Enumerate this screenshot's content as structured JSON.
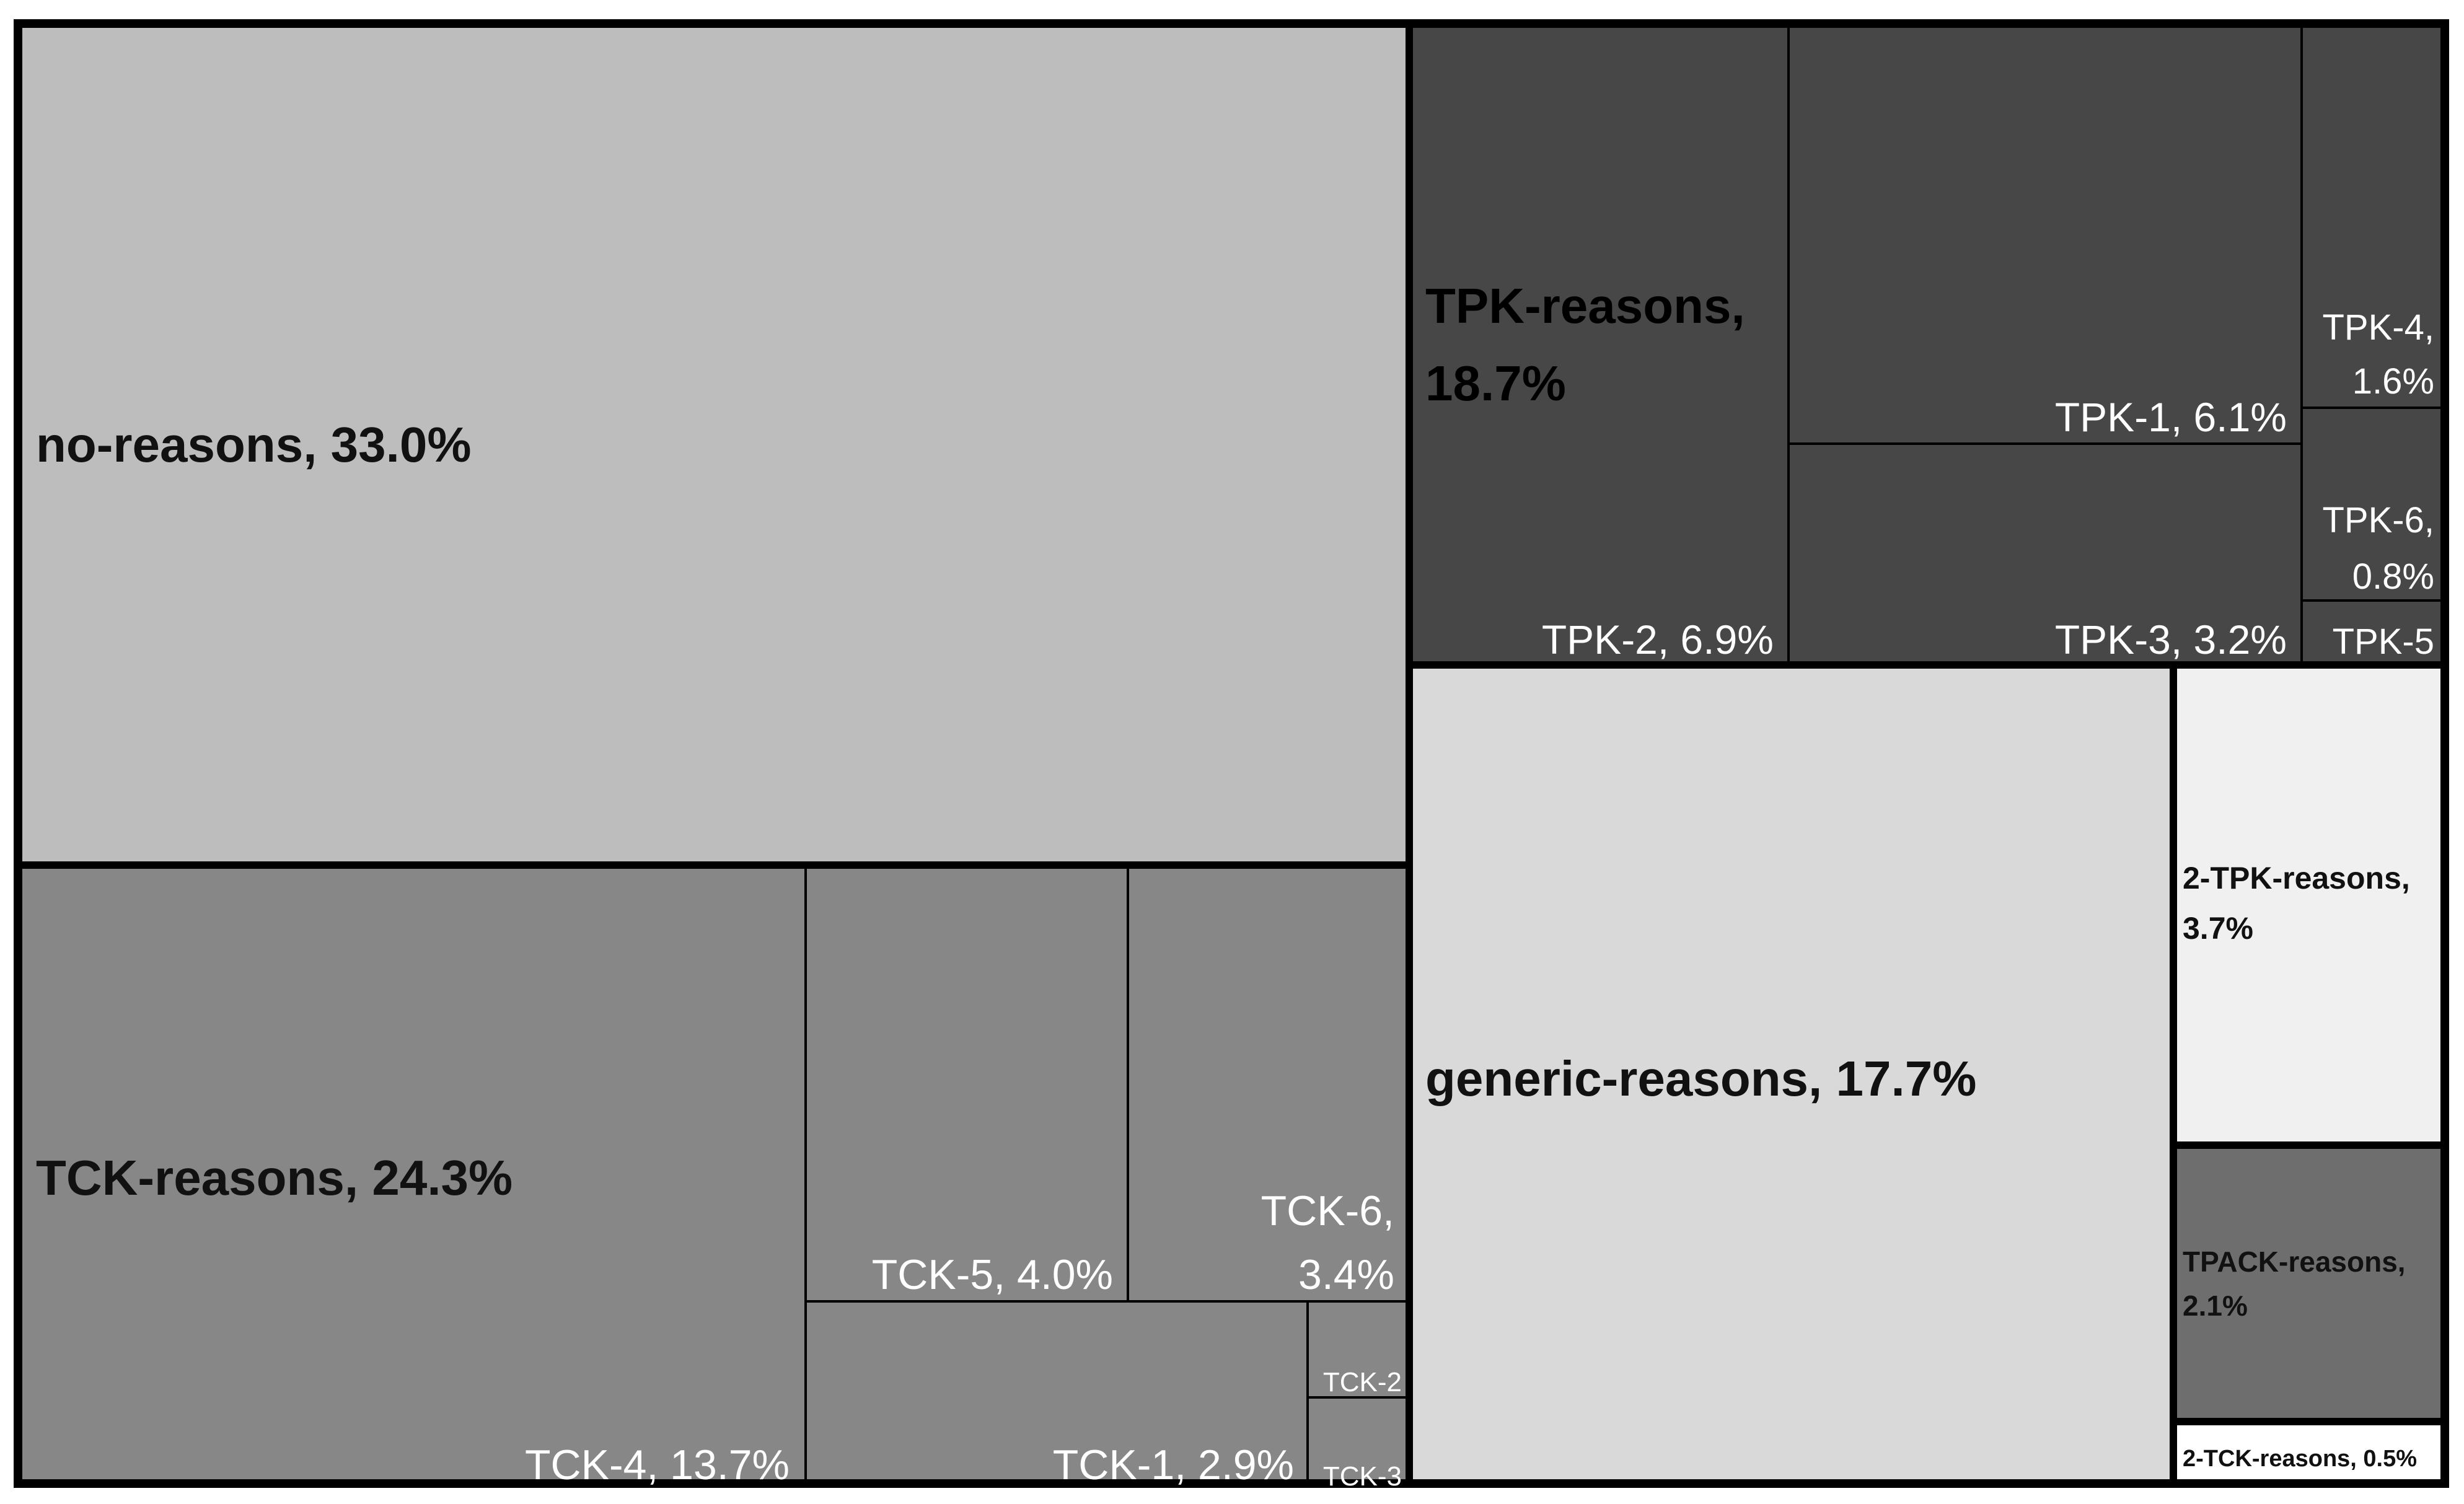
{
  "chart_data": {
    "type": "treemap",
    "title": "",
    "groups": [
      {
        "name": "no-reasons",
        "label": "no-reasons, 33.0%",
        "value": 33.0,
        "color": "#bdbdbd",
        "text_color": "#111111",
        "children": []
      },
      {
        "name": "TCK-reasons",
        "label": "TCK-reasons, 24.3%",
        "value": 24.3,
        "color": "#878787",
        "text_color": "#111111",
        "children": [
          {
            "name": "TCK-4",
            "label": "TCK-4, 13.7%",
            "value": 13.7
          },
          {
            "name": "TCK-5",
            "label": "TCK-5, 4.0%",
            "value": 4.0
          },
          {
            "name": "TCK-6",
            "label": "TCK-6, 3.4%",
            "value": 3.4
          },
          {
            "name": "TCK-1",
            "label": "TCK-1, 2.9%",
            "value": 2.9
          },
          {
            "name": "TCK-2",
            "label": "TCK-2",
            "value": 0.2
          },
          {
            "name": "TCK-3",
            "label": "TCK-3",
            "value": 0.1
          }
        ]
      },
      {
        "name": "TPK-reasons",
        "label": "TPK-reasons, 18.7%",
        "value": 18.7,
        "color": "#474747",
        "text_color": "#000000",
        "children": [
          {
            "name": "TPK-2",
            "label": "TPK-2, 6.9%",
            "value": 6.9
          },
          {
            "name": "TPK-1",
            "label": "TPK-1, 6.1%",
            "value": 6.1
          },
          {
            "name": "TPK-3",
            "label": "TPK-3, 3.2%",
            "value": 3.2
          },
          {
            "name": "TPK-4",
            "label": "TPK-4, 1.6%",
            "value": 1.6
          },
          {
            "name": "TPK-6",
            "label": "TPK-6, 0.8%",
            "value": 0.8
          },
          {
            "name": "TPK-5",
            "label": "TPK-5",
            "value": 0.1
          }
        ]
      },
      {
        "name": "generic-reasons",
        "label": "generic-reasons, 17.7%",
        "value": 17.7,
        "color": "#d9d9d9",
        "text_color": "#111111",
        "children": []
      },
      {
        "name": "2-TPK-reasons",
        "label": "2-TPK-reasons, 3.7%",
        "value": 3.7,
        "color": "#f0f0f0",
        "text_color": "#111111",
        "children": []
      },
      {
        "name": "TPACK-reasons",
        "label": "TPACK-reasons, 2.1%",
        "value": 2.1,
        "color": "#6e6e6e",
        "text_color": "#111111",
        "children": []
      },
      {
        "name": "2-TCK-reasons",
        "label": "2-TCK-reasons, 0.5%",
        "value": 0.5,
        "color": "#ffffff",
        "text_color": "#111111",
        "children": []
      }
    ],
    "child_text_color": "#ffffff",
    "border_color": "#000000"
  }
}
